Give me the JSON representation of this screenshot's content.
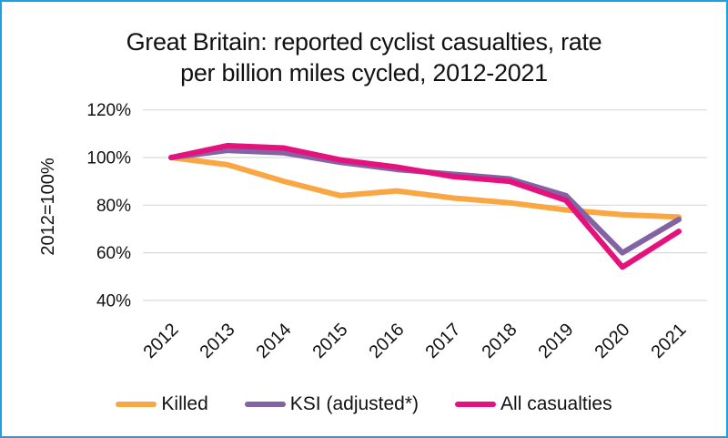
{
  "frame": {
    "border_color": "#1E9FDE",
    "background_color": "#FFFFFF",
    "grid_color": "#D9D9D9"
  },
  "header": {
    "line1": "Great Britain: reported cyclist casualties, rate",
    "line2": "per billion miles cycled, 2012-2021"
  },
  "chart_data": {
    "type": "line",
    "title": "Great Britain: reported cyclist casualties, rate per billion miles cycled, 2012-2021",
    "x": [
      "2012",
      "2013",
      "2014",
      "2015",
      "2016",
      "2017",
      "2018",
      "2019",
      "2020",
      "2021"
    ],
    "xlabel": "",
    "ylabel": "2012=100%",
    "ylim": [
      40,
      120
    ],
    "grid": true,
    "legend_position": "bottom",
    "y_axis": {
      "label": "2012=100%",
      "ticks": [
        {
          "value": 120,
          "label": "120%"
        },
        {
          "value": 100,
          "label": "100%"
        },
        {
          "value": 80,
          "label": "80%"
        },
        {
          "value": 60,
          "label": "60%"
        },
        {
          "value": 40,
          "label": "40%"
        }
      ]
    },
    "series": [
      {
        "name": "Killed",
        "color": "#FAA643",
        "values": [
          100,
          97,
          90,
          84,
          86,
          83,
          81,
          78,
          76,
          75
        ]
      },
      {
        "name": "KSI (adjusted*)",
        "color": "#8264A5",
        "values": [
          100,
          103,
          102,
          98,
          95,
          93,
          91,
          84,
          60,
          74
        ]
      },
      {
        "name": "All casualties",
        "color": "#E5117D",
        "values": [
          100,
          105,
          104,
          99,
          96,
          92,
          90,
          82,
          54,
          69
        ]
      }
    ]
  }
}
